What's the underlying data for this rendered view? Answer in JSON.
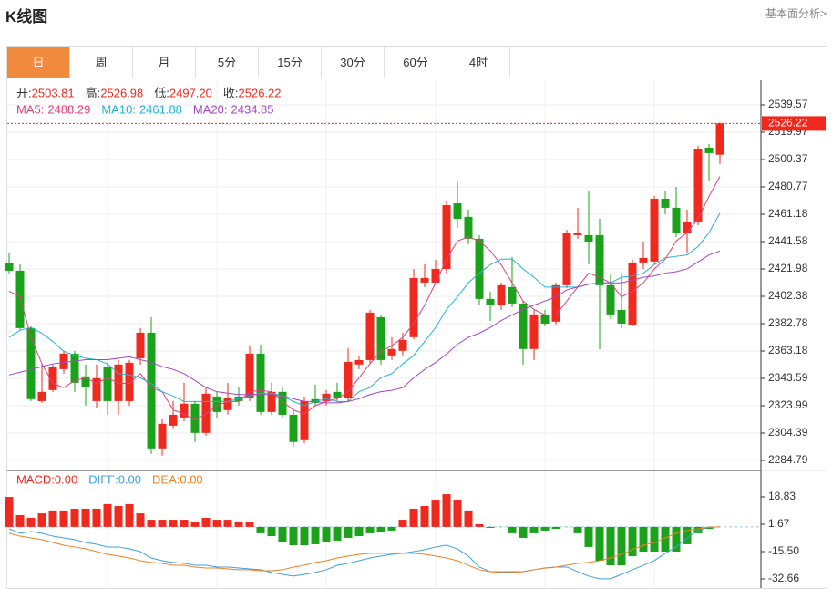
{
  "header": {
    "title": "K线图",
    "link": "基本面分析>"
  },
  "tabs": [
    "日",
    "周",
    "月",
    "5分",
    "15分",
    "30分",
    "60分",
    "4时"
  ],
  "chart_data": [
    {
      "type": "candlestick",
      "up_color": "#f0291e",
      "down_color": "#1aa31a",
      "grid": true,
      "readout": [
        {
          "text": "开:",
          "value": 2503.81
        },
        {
          "text": "高:",
          "value": 2526.98
        },
        {
          "text": "低:",
          "value": {
            "value": 2497.2,
            "label": "2497.20"
          }
        },
        {
          "text": "收:",
          "value": 2526.22
        }
      ],
      "open": [
        2425.9,
        2420.7,
        2379.6,
        2327.3,
        2335.2,
        2350.2,
        2361.3,
        2345.0,
        2327.3,
        2351.5,
        2327.3,
        2327.3,
        2358.0,
        2376.3,
        2293.4,
        2309.7,
        2315.6,
        2325.4,
        2304.5,
        2330.6,
        2320.8,
        2330.6,
        2329.3,
        2361.3,
        2319.5,
        2333.9,
        2317.5,
        2299.3,
        2328.7,
        2327.3,
        2333.9,
        2329.3,
        2353.5,
        2356.7,
        2387.4,
        2360.0,
        2363.3,
        2373.1,
        2412.2,
        2412.2,
        2422.0,
        2469.0,
        2459.3,
        2443.6,
        2400.5,
        2395.9,
        2409.0,
        2397.2,
        2364.6,
        2389.4,
        2384.2,
        2410.3,
        2446.2,
        2446.2,
        2446.2,
        2410.3,
        2392.6,
        2381.5,
        2426.6,
        2427.3,
        2472.3,
        2465.8,
        2448.1,
        2456.0,
        2508.9,
        2503.81
      ],
      "high": [
        2433.1,
        2425.3,
        2380.9,
        2353.5,
        2353.5,
        2363.3,
        2363.3,
        2353.5,
        2353.5,
        2354.8,
        2356.7,
        2356.7,
        2379.6,
        2387.4,
        2314.3,
        2327.3,
        2340.4,
        2327.3,
        2337.1,
        2333.9,
        2340.4,
        2337.1,
        2366.5,
        2367.8,
        2340.4,
        2337.1,
        2320.8,
        2330.6,
        2339.1,
        2335.2,
        2340.4,
        2365.2,
        2360.0,
        2392.6,
        2389.4,
        2373.1,
        2376.3,
        2422.0,
        2425.3,
        2428.6,
        2471.0,
        2484.1,
        2464.5,
        2446.2,
        2405.7,
        2412.2,
        2430.5,
        2399.2,
        2392.6,
        2392.6,
        2412.2,
        2450.1,
        2465.8,
        2477.5,
        2457.9,
        2418.8,
        2418.8,
        2428.6,
        2441.6,
        2474.3,
        2477.5,
        2480.8,
        2464.5,
        2510.2,
        2511.5,
        2526.98
      ],
      "low": [
        2418.8,
        2378.3,
        2327.3,
        2326.0,
        2333.9,
        2346.9,
        2333.9,
        2324.1,
        2322.1,
        2317.5,
        2317.5,
        2324.1,
        2353.5,
        2289.5,
        2288.2,
        2307.8,
        2313.0,
        2298.0,
        2302.5,
        2315.6,
        2317.5,
        2324.1,
        2327.3,
        2317.5,
        2317.5,
        2315.6,
        2294.7,
        2297.3,
        2324.1,
        2324.1,
        2327.3,
        2327.3,
        2350.2,
        2354.8,
        2353.5,
        2356.7,
        2360.0,
        2371.7,
        2409.0,
        2410.9,
        2418.8,
        2451.4,
        2439.7,
        2395.9,
        2384.8,
        2392.6,
        2394.6,
        2353.5,
        2356.7,
        2380.9,
        2382.2,
        2408.3,
        2443.6,
        2425.3,
        2364.6,
        2386.1,
        2379.6,
        2380.9,
        2422.0,
        2425.3,
        2461.2,
        2444.9,
        2433.1,
        2453.4,
        2485.4,
        2497.2
      ],
      "close": [
        2420.7,
        2379.6,
        2328.7,
        2333.9,
        2351.5,
        2361.3,
        2340.4,
        2337.1,
        2343.7,
        2327.3,
        2353.5,
        2354.8,
        2376.3,
        2293.4,
        2311.0,
        2317.5,
        2325.4,
        2304.5,
        2332.6,
        2319.5,
        2329.3,
        2327.3,
        2361.3,
        2319.5,
        2333.9,
        2317.5,
        2298.0,
        2327.3,
        2326.0,
        2332.6,
        2329.3,
        2355.4,
        2356.7,
        2390.7,
        2356.7,
        2364.6,
        2371.1,
        2415.5,
        2415.5,
        2422.0,
        2467.7,
        2457.9,
        2443.6,
        2400.5,
        2395.9,
        2410.3,
        2397.2,
        2364.6,
        2389.4,
        2382.8,
        2410.3,
        2447.5,
        2448.1,
        2441.6,
        2410.3,
        2389.4,
        2382.8,
        2426.6,
        2429.9,
        2472.3,
        2465.8,
        2448.1,
        2456.0,
        2508.2,
        2505.0,
        2526.22
      ],
      "series": [
        {
          "name": "MA5:",
          "color": "#e0407e",
          "values": [
            2406,
            2402,
            2373,
            2354,
            2340,
            2337,
            2342,
            2344,
            2340,
            2344,
            2340,
            2340,
            2347,
            2337,
            2334,
            2321,
            2318,
            2314,
            2318,
            2324,
            2327,
            2327,
            2334,
            2335,
            2334,
            2327,
            2321,
            2318,
            2324,
            2327,
            2329,
            2334,
            2344,
            2354,
            2363,
            2367,
            2373,
            2383,
            2396,
            2412,
            2429,
            2442,
            2445,
            2442,
            2435,
            2425,
            2412,
            2399,
            2393,
            2389,
            2389,
            2399,
            2409,
            2419,
            2416,
            2412,
            2402,
            2406,
            2412,
            2422,
            2429,
            2442,
            2448,
            2458,
            2474,
            2488.29
          ]
        },
        {
          "name": "MA10:",
          "color": "#22b3d3",
          "values": [
            2373,
            2378,
            2380,
            2376,
            2370,
            2363,
            2360,
            2358,
            2357,
            2354,
            2347,
            2346,
            2344,
            2340,
            2334,
            2331,
            2327,
            2327,
            2327,
            2327,
            2327,
            2329,
            2331,
            2333,
            2333,
            2331,
            2327,
            2324,
            2327,
            2329,
            2327,
            2327,
            2334,
            2337,
            2344,
            2347,
            2354,
            2360,
            2370,
            2380,
            2393,
            2402,
            2412,
            2419,
            2425,
            2429,
            2429,
            2422,
            2416,
            2409,
            2409,
            2409,
            2409,
            2411,
            2412,
            2412,
            2416,
            2417,
            2419,
            2425,
            2430,
            2431,
            2432,
            2438,
            2448,
            2461.88
          ]
        },
        {
          "name": "MA20:",
          "color": "#a645c4",
          "values": [
            2346,
            2348,
            2350,
            2352,
            2354,
            2355,
            2356,
            2357,
            2357,
            2357,
            2358,
            2359,
            2357,
            2355,
            2352,
            2350,
            2347,
            2342,
            2337,
            2334,
            2333,
            2332,
            2332,
            2332,
            2332,
            2331,
            2329,
            2327,
            2327,
            2326,
            2326,
            2327,
            2329,
            2332,
            2334,
            2335,
            2337,
            2344,
            2350,
            2355,
            2361,
            2368,
            2373,
            2376,
            2380,
            2385,
            2389,
            2393,
            2396,
            2399,
            2402,
            2407,
            2409,
            2411,
            2412,
            2412,
            2412,
            2414,
            2416,
            2417,
            2419,
            2420,
            2422,
            2427,
            2432,
            2434.85
          ]
        }
      ],
      "ylim": [
        2278.26,
        2557.2
      ],
      "yticks": [
        2539.57,
        2519.97,
        2500.37,
        2480.77,
        2461.18,
        2441.58,
        2421.98,
        2402.38,
        2382.78,
        2363.18,
        2343.59,
        2323.99,
        2304.39,
        2284.79
      ]
    },
    {
      "type": "macd",
      "series": [
        {
          "name": "MACD:",
          "color": "#f0291e",
          "down_color": "#1aa31a",
          "kind": "bar",
          "values": [
            18.8,
            7.4,
            5.7,
            8.5,
            10.3,
            10.3,
            11.4,
            11.4,
            11.4,
            14.3,
            13.1,
            14.3,
            8.5,
            4.5,
            4.5,
            4.5,
            4.5,
            3.4,
            5.7,
            4.5,
            4.5,
            3.4,
            3.4,
            -4.0,
            -5.8,
            -9.8,
            -11.5,
            -11.5,
            -10.9,
            -9.8,
            -8.6,
            -6.9,
            -5.8,
            -4.0,
            -3.0,
            -2.3,
            4.5,
            11.4,
            13.1,
            17.1,
            20.5,
            17.1,
            10.3,
            1.7,
            -0.6,
            -0.1,
            -4.0,
            -6.9,
            -4.0,
            -2.3,
            -1.2,
            -0.1,
            -4.0,
            -12.6,
            -21.2,
            -24.1,
            -24.1,
            -18.4,
            -15.5,
            -15.5,
            -15.5,
            -15.5,
            -10.9,
            -4.0,
            -1.2,
            0
          ]
        },
        {
          "name": "DIFF:",
          "color": "#3ea0e0",
          "kind": "line",
          "values": [
            -1.2,
            -4.0,
            -2.9,
            -4.0,
            -5.8,
            -6.9,
            -8.0,
            -9.8,
            -10.9,
            -12.6,
            -12.6,
            -13.8,
            -15.5,
            -19.5,
            -21.2,
            -22.3,
            -22.9,
            -24.1,
            -24.1,
            -25.2,
            -25.2,
            -25.8,
            -26.4,
            -26.9,
            -28.6,
            -29.8,
            -30.9,
            -29.8,
            -28.6,
            -26.9,
            -24.1,
            -22.9,
            -21.2,
            -19.5,
            -18.3,
            -17.2,
            -16.6,
            -15.5,
            -14.3,
            -12.6,
            -11.5,
            -13.8,
            -18.3,
            -25.2,
            -28.1,
            -28.1,
            -28.1,
            -28.1,
            -26.9,
            -25.8,
            -25.2,
            -25.2,
            -28.1,
            -30.9,
            -32.6,
            -32.6,
            -29.8,
            -26.9,
            -24.1,
            -21.2,
            -16.6,
            -12.6,
            -6.9,
            -2.3,
            -0.1,
            0
          ]
        },
        {
          "name": "DEA:",
          "color": "#f08020",
          "kind": "line",
          "values": [
            -4.0,
            -5.8,
            -6.9,
            -8.0,
            -9.8,
            -11.5,
            -12.6,
            -13.8,
            -15.5,
            -17.2,
            -18.3,
            -19.5,
            -21.2,
            -22.3,
            -22.9,
            -24.1,
            -24.1,
            -25.2,
            -25.8,
            -25.8,
            -26.4,
            -26.9,
            -26.9,
            -27.5,
            -27.5,
            -26.9,
            -25.2,
            -24.1,
            -22.3,
            -21.2,
            -19.5,
            -18.3,
            -17.2,
            -16.6,
            -16.6,
            -16.6,
            -16.6,
            -16.6,
            -17.2,
            -18.3,
            -19.5,
            -21.2,
            -24.1,
            -26.9,
            -28.1,
            -28.6,
            -28.6,
            -28.1,
            -26.9,
            -25.8,
            -25.2,
            -24.1,
            -22.9,
            -22.3,
            -21.2,
            -19.5,
            -17.2,
            -14.3,
            -11.5,
            -9.8,
            -6.9,
            -4.0,
            -2.3,
            -1.2,
            -0.1,
            0
          ]
        }
      ],
      "legend_values": [
        {
          "value": 0,
          "label": "0.00"
        },
        {
          "value": 0,
          "label": "0.00"
        },
        {
          "value": 0,
          "label": "0.00"
        }
      ],
      "ylim": [
        -38.38,
        34.85
      ],
      "yticks": [
        18.83,
        1.67,
        {
          "value": -15.5,
          "label": "-15.50"
        },
        -32.66
      ]
    }
  ]
}
